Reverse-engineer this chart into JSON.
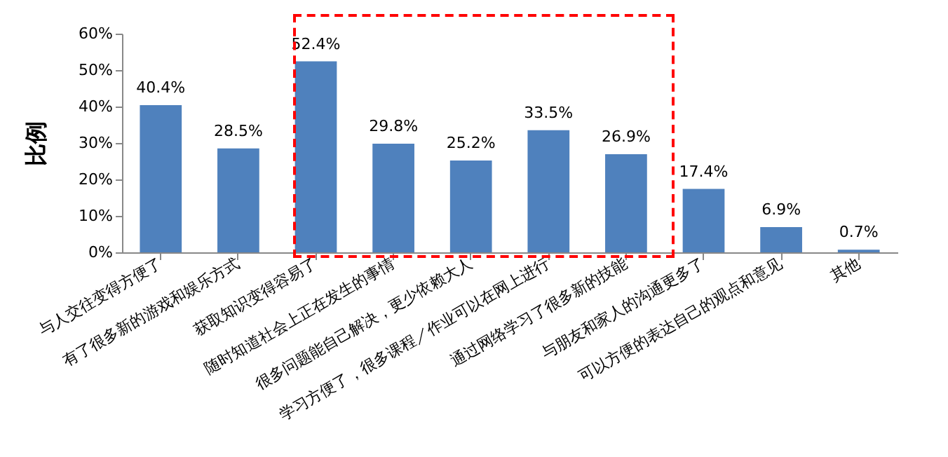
{
  "chart_data": {
    "type": "bar",
    "ylabel": "比例",
    "categories": [
      "与人交往变得方便了",
      "有了很多新的游戏和娱乐方式",
      "获取知识变得容易了",
      "随时知道社会上正在发生的事情",
      "很多问题能自己解决，更少依赖大人",
      "学习方便了，很多课程／作业可以在网上进行",
      "通过网络学习了很多新的技能",
      "与朋友和家人的沟通更多了",
      "可以方便的表达自己的观点和意见",
      "其他"
    ],
    "values": [
      40.4,
      28.5,
      52.4,
      29.8,
      25.2,
      33.5,
      26.9,
      17.4,
      6.9,
      0.7
    ],
    "value_labels": [
      "40.4%",
      "28.5%",
      "52.4%",
      "29.8%",
      "25.2%",
      "33.5%",
      "26.9%",
      "17.4%",
      "6.9%",
      "0.7%"
    ],
    "color": "#4f81bd",
    "ylim": [
      0,
      60
    ],
    "yticks": [
      {
        "value": 0,
        "label": "0%"
      },
      {
        "value": 10,
        "label": "10%"
      },
      {
        "value": 20,
        "label": "20%"
      },
      {
        "value": 30,
        "label": "30%"
      },
      {
        "value": 40,
        "label": "40%"
      },
      {
        "value": 50,
        "label": "50%"
      },
      {
        "value": 60,
        "label": "60%"
      }
    ],
    "grid": false
  }
}
